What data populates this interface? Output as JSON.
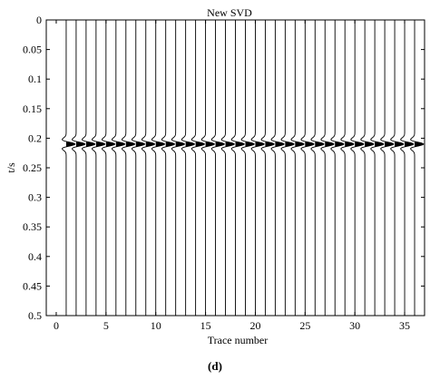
{
  "chart_data": {
    "type": "line",
    "title": "New SVD",
    "xlabel": "Trace number",
    "ylabel": "t/s",
    "xlim": [
      -1,
      37
    ],
    "ylim": [
      0,
      0.5
    ],
    "y_reversed": true,
    "xticks": [
      0,
      5,
      10,
      15,
      20,
      25,
      30,
      35
    ],
    "yticks": [
      0,
      0.05,
      0.1,
      0.15,
      0.2,
      0.25,
      0.3,
      0.35,
      0.4,
      0.45,
      0.5
    ],
    "ytick_labels": [
      "0",
      "0.05",
      "0.1",
      "0.15",
      "0.2",
      "0.25",
      "0.3",
      "0.35",
      "0.4",
      "0.45",
      "0.5"
    ],
    "grid": false,
    "traces": {
      "count": 36,
      "first": 1,
      "last": 36,
      "event_time": 0.21,
      "wavelet": "Ricker",
      "fill": "positive lobes black",
      "peak_amplitude_traces": 0.9
    }
  },
  "caption": "(d)"
}
